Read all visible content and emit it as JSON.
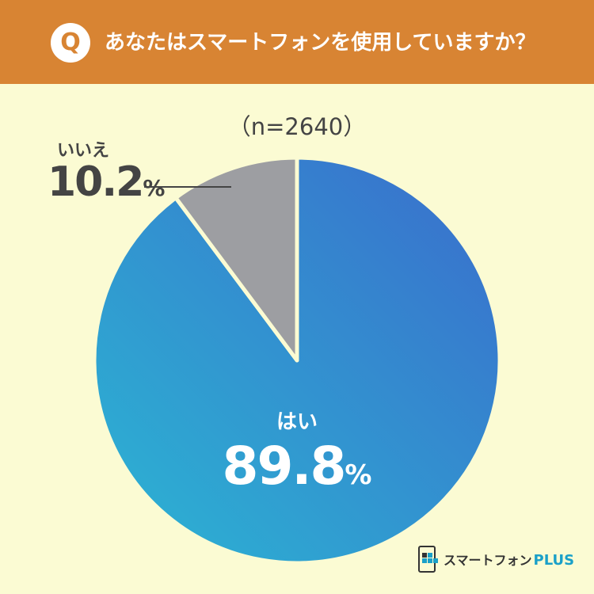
{
  "header": {
    "badge": "Q",
    "question": "あなたはスマートフォンを使用していますか？"
  },
  "chart_data": {
    "type": "pie",
    "sample_label": "（n=2640）",
    "slices": [
      {
        "label": "はい",
        "value": 89.8,
        "value_text": "89.8",
        "unit": "%",
        "color_start": "#2bb6d3",
        "color_end": "#3a6ccc"
      },
      {
        "label": "いいえ",
        "value": 10.2,
        "value_text": "10.2",
        "unit": "%",
        "color": "#9d9ea2"
      }
    ]
  },
  "logo": {
    "name": "スマートフォン",
    "plus": "PLUS",
    "mark_icon": "smartphone-plus-logo-icon",
    "brand_color": "#1aa0c8"
  }
}
